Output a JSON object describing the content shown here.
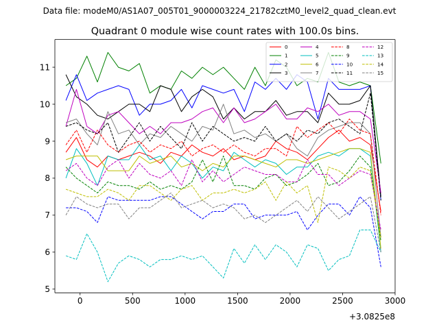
{
  "suptitle": "Data file: modeM0/AS1A07_005T01_9000003224_21782cztM0_level2_quad_clean.evt",
  "chart_data": {
    "type": "line",
    "title": "Quadrant 0 module wise count rates with 100.0s bins.",
    "xlabel": "",
    "ylabel": "",
    "x_offset_label": "+3.0825e8",
    "xlim": [
      -240,
      3000
    ],
    "ylim": [
      4.9,
      11.75
    ],
    "xticks": [
      0,
      500,
      1000,
      1500,
      2000,
      2500,
      3000
    ],
    "xtick_labels": [
      "0",
      "500",
      "1000",
      "1500",
      "2000",
      "2500",
      "3000"
    ],
    "yticks": [
      5,
      6,
      7,
      8,
      9,
      10,
      11
    ],
    "ytick_labels": [
      "5",
      "6",
      "7",
      "8",
      "9",
      "10",
      "11"
    ],
    "x": [
      -135,
      -35,
      65,
      165,
      265,
      365,
      465,
      565,
      665,
      765,
      865,
      965,
      1065,
      1165,
      1265,
      1365,
      1465,
      1565,
      1665,
      1765,
      1865,
      1965,
      2065,
      2165,
      2265,
      2365,
      2465,
      2565,
      2665,
      2765,
      2865
    ],
    "legend_position": "upper-right",
    "series": [
      {
        "name": "0",
        "color": "#ff0000",
        "dash": "solid",
        "values": [
          8.7,
          9.1,
          8.5,
          8.3,
          8.6,
          8.5,
          8.6,
          8.7,
          8.6,
          8.4,
          8.7,
          8.6,
          8.9,
          8.7,
          8.6,
          8.8,
          8.5,
          8.6,
          8.5,
          8.6,
          9.0,
          8.8,
          8.7,
          8.5,
          8.8,
          9.1,
          9.3,
          9.0,
          9.1,
          8.9,
          7.1
        ]
      },
      {
        "name": "1",
        "color": "#008000",
        "dash": "solid",
        "values": [
          10.5,
          10.7,
          11.3,
          10.6,
          11.4,
          11.0,
          10.9,
          11.1,
          10.3,
          10.5,
          10.4,
          10.9,
          10.7,
          11.0,
          10.8,
          11.0,
          10.7,
          10.4,
          11.0,
          10.5,
          11.2,
          11.0,
          10.5,
          10.7,
          10.6,
          11.4,
          10.6,
          10.5,
          10.6,
          10.5,
          8.4
        ]
      },
      {
        "name": "2",
        "color": "#0000ff",
        "dash": "solid",
        "values": [
          10.1,
          10.8,
          10.1,
          10.3,
          10.4,
          10.5,
          10.4,
          9.7,
          10.0,
          10.0,
          10.1,
          10.4,
          9.9,
          10.5,
          10.4,
          10.3,
          10.4,
          9.8,
          10.6,
          10.4,
          10.7,
          10.4,
          10.8,
          10.6,
          9.6,
          10.7,
          10.4,
          10.4,
          10.4,
          10.5,
          7.4
        ]
      },
      {
        "name": "3",
        "color": "#000000",
        "dash": "solid",
        "values": [
          10.8,
          10.2,
          10.0,
          9.7,
          9.6,
          9.8,
          10.0,
          10.0,
          9.8,
          10.5,
          10.4,
          9.8,
          10.2,
          10.4,
          10.2,
          9.6,
          9.9,
          9.6,
          9.8,
          9.8,
          10.1,
          9.7,
          9.8,
          9.8,
          9.5,
          10.3,
          10.0,
          10.0,
          10.1,
          10.5,
          7.5
        ]
      },
      {
        "name": "4",
        "color": "#bf00bf",
        "dash": "solid",
        "values": [
          9.4,
          10.4,
          9.4,
          9.2,
          9.7,
          9.8,
          9.5,
          9.2,
          9.4,
          9.2,
          9.5,
          9.5,
          9.6,
          9.8,
          9.9,
          9.5,
          9.9,
          9.5,
          9.6,
          9.8,
          10.0,
          9.6,
          9.6,
          9.9,
          9.8,
          10.0,
          9.7,
          9.8,
          9.8,
          9.6,
          7.6
        ]
      },
      {
        "name": "5",
        "color": "#00bfbf",
        "dash": "solid",
        "values": [
          8.0,
          8.8,
          8.4,
          7.8,
          8.6,
          8.5,
          8.5,
          8.9,
          8.5,
          8.6,
          8.2,
          8.6,
          8.4,
          8.0,
          8.3,
          8.2,
          8.7,
          8.5,
          8.3,
          8.5,
          8.4,
          8.1,
          8.3,
          8.3,
          8.6,
          8.7,
          8.6,
          8.8,
          8.8,
          8.6,
          6.0
        ]
      },
      {
        "name": "6",
        "color": "#bfbf00",
        "dash": "solid",
        "values": [
          8.5,
          8.6,
          8.6,
          8.6,
          8.2,
          8.2,
          8.2,
          8.6,
          8.4,
          8.5,
          8.6,
          8.3,
          8.4,
          8.2,
          8.4,
          8.3,
          8.6,
          8.6,
          8.5,
          8.4,
          8.3,
          8.5,
          8.5,
          8.4,
          8.5,
          8.6,
          8.7,
          8.8,
          8.8,
          8.7,
          6.1
        ]
      },
      {
        "name": "7",
        "color": "#808080",
        "dash": "solid",
        "values": [
          9.5,
          9.6,
          9.2,
          8.9,
          9.8,
          9.2,
          9.3,
          8.9,
          9.2,
          9.1,
          9.4,
          9.2,
          9.0,
          9.4,
          9.3,
          10.0,
          9.2,
          9.3,
          9.1,
          9.2,
          9.0,
          9.2,
          8.8,
          8.6,
          9.1,
          9.3,
          9.4,
          9.5,
          9.5,
          9.2,
          6.4
        ]
      },
      {
        "name": "8",
        "color": "#ff0000",
        "dash": "dashed",
        "values": [
          8.9,
          9.3,
          8.7,
          9.3,
          8.9,
          8.7,
          8.9,
          9.0,
          8.7,
          8.9,
          8.8,
          9.0,
          8.6,
          8.8,
          8.9,
          8.7,
          8.9,
          8.7,
          8.6,
          8.8,
          8.8,
          8.6,
          9.4,
          9.1,
          9.3,
          9.5,
          9.2,
          9.6,
          9.3,
          9.2,
          7.0
        ]
      },
      {
        "name": "9",
        "color": "#008000",
        "dash": "dashed",
        "values": [
          8.3,
          8.0,
          7.8,
          7.6,
          7.9,
          7.8,
          7.8,
          7.7,
          7.9,
          7.7,
          7.8,
          7.7,
          7.9,
          8.5,
          7.9,
          8.6,
          7.8,
          7.8,
          7.7,
          8.0,
          8.1,
          7.8,
          7.9,
          8.1,
          8.4,
          7.8,
          7.9,
          8.2,
          8.6,
          8.3,
          6.3
        ]
      },
      {
        "name": "10",
        "color": "#0000ff",
        "dash": "dashed",
        "values": [
          7.2,
          7.2,
          7.1,
          6.8,
          7.5,
          7.4,
          7.4,
          7.4,
          7.4,
          7.5,
          7.5,
          7.3,
          7.1,
          6.9,
          7.1,
          7.1,
          7.3,
          7.3,
          6.9,
          7.0,
          7.0,
          7.0,
          7.1,
          6.6,
          7.0,
          7.3,
          7.3,
          7.0,
          7.5,
          7.2,
          5.6
        ]
      },
      {
        "name": "11",
        "color": "#000000",
        "dash": "dashed",
        "values": [
          9.4,
          9.5,
          9.3,
          9.2,
          9.5,
          8.7,
          9.1,
          9.5,
          9.0,
          9.4,
          9.1,
          8.8,
          9.5,
          9.0,
          9.4,
          9.2,
          9.0,
          9.1,
          9.0,
          9.4,
          9.0,
          9.2,
          9.0,
          9.3,
          9.2,
          9.5,
          9.6,
          9.4,
          9.2,
          10.3,
          7.4
        ]
      },
      {
        "name": "12",
        "color": "#bf00bf",
        "dash": "dashed",
        "values": [
          8.2,
          8.4,
          8.0,
          7.8,
          8.3,
          8.5,
          8.0,
          8.4,
          8.1,
          8.0,
          8.2,
          7.8,
          8.5,
          7.9,
          8.2,
          7.9,
          8.1,
          8.3,
          8.2,
          8.1,
          8.1,
          7.9,
          7.9,
          8.5,
          8.1,
          8.1,
          7.8,
          8.0,
          8.2,
          8.1,
          6.6
        ]
      },
      {
        "name": "13",
        "color": "#00bfbf",
        "dash": "dashed",
        "values": [
          5.9,
          5.8,
          6.5,
          6.0,
          5.2,
          5.7,
          5.9,
          5.8,
          5.6,
          5.8,
          5.8,
          5.9,
          5.8,
          5.9,
          5.6,
          5.3,
          6.1,
          5.7,
          6.2,
          5.8,
          6.2,
          6.0,
          5.6,
          6.2,
          6.1,
          5.5,
          5.8,
          5.9,
          6.6,
          6.6,
          6.0
        ]
      },
      {
        "name": "14",
        "color": "#bfbf00",
        "dash": "dashed",
        "values": [
          7.7,
          7.6,
          7.5,
          7.5,
          7.7,
          7.6,
          7.4,
          7.8,
          7.8,
          7.6,
          7.4,
          7.7,
          7.8,
          7.4,
          7.6,
          7.6,
          7.7,
          7.6,
          7.7,
          7.9,
          7.4,
          7.9,
          7.6,
          7.8,
          6.8,
          8.3,
          8.2,
          8.0,
          8.3,
          8.2,
          6.4
        ]
      },
      {
        "name": "15",
        "color": "#808080",
        "dash": "dashed",
        "values": [
          7.0,
          7.5,
          7.3,
          7.2,
          7.3,
          7.3,
          6.9,
          7.2,
          7.2,
          7.4,
          7.6,
          7.2,
          7.3,
          7.4,
          7.2,
          7.3,
          7.2,
          6.9,
          7.0,
          6.8,
          7.0,
          7.2,
          7.4,
          7.1,
          7.5,
          7.2,
          6.9,
          7.1,
          7.3,
          7.5,
          6.0
        ]
      }
    ]
  }
}
